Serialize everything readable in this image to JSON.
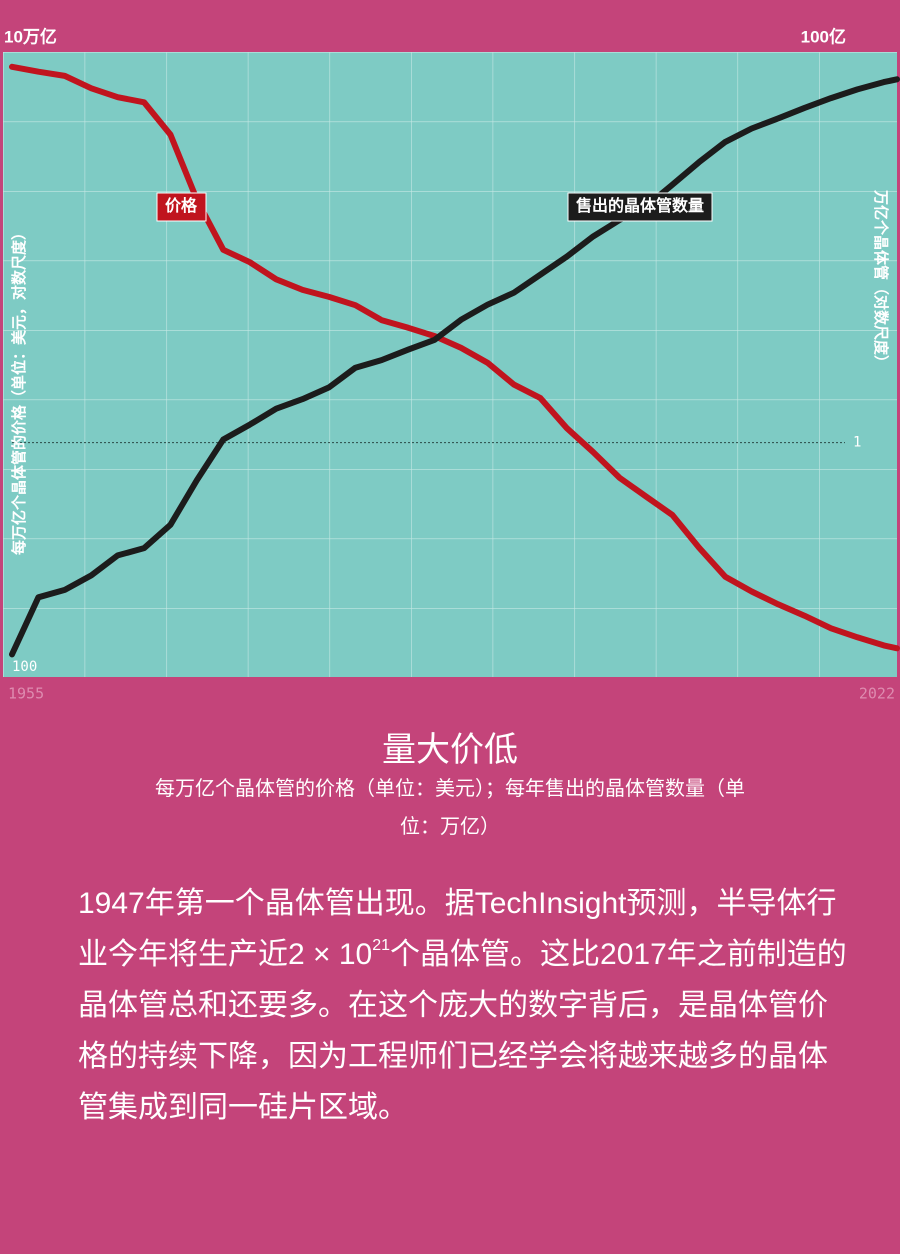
{
  "chart_data": {
    "type": "line",
    "title": "量大价低",
    "subtitle": "每万亿个晶体管的价格（单位：美元）；每年售出的晶体管数量（单位：万亿）",
    "ylabel": "每万亿个晶体管的价格（单位：美元，对数尺度）",
    "y2label": "万亿个晶体管（对数尺度）",
    "log_scale": true,
    "x": [
      1955,
      1957,
      1959,
      1961,
      1963,
      1965,
      1967,
      1969,
      1971,
      1973,
      1975,
      1977,
      1979,
      1981,
      1983,
      1985,
      1987,
      1989,
      1991,
      1993,
      1995,
      1997,
      1999,
      2001,
      2003,
      2005,
      2007,
      2009,
      2011,
      2013,
      2015,
      2017,
      2019,
      2021,
      2022
    ],
    "xlim": [
      1955,
      2022
    ],
    "xticks": [
      1955,
      2022
    ],
    "ylim": [
      100,
      10000000000000
    ],
    "yticks": [
      {
        "value": 10000000000000,
        "label": "10万亿"
      },
      100
    ],
    "y2lim": [
      1e-06,
      10000000000
    ],
    "y2ticks": [
      {
        "value": 10000000000,
        "label": "100亿"
      },
      1
    ],
    "series": [
      {
        "name": "价格",
        "color": "#c0141e",
        "values": [
          5500000000000,
          4500000000000,
          3800000000000,
          2300000000000,
          1600000000000,
          1300000000000,
          350000000000,
          25000000000,
          3300000000,
          2000000000,
          1000000000,
          650000000,
          490000000,
          350000000,
          190000000,
          140000000,
          100000000,
          62000000,
          34000000,
          14000000,
          8100000,
          2400000,
          910000,
          320000,
          150000,
          71000,
          19000,
          5800,
          3200,
          1900,
          1200,
          720,
          500,
          360,
          320
        ]
      },
      {
        "name": "售出的晶体管数量",
        "color": "#1c1c1c",
        "axis": "y2",
        "values": [
          3.8e-06,
          0.00011,
          0.00017,
          0.0004,
          0.0013,
          0.002,
          0.0079,
          0.11,
          1.2,
          2.9,
          7.4,
          13,
          26,
          83,
          130,
          240,
          430,
          1400,
          3400,
          6900,
          20000,
          58000,
          190000,
          500000,
          1100000,
          4000000,
          15000000,
          50000000,
          110000000,
          200000000,
          370000000,
          660000000,
          1100000000,
          1700000000,
          2000000000
        ]
      }
    ]
  },
  "body": {
    "before": "1947年第一个晶体管出现。据TechInsight预测，半导体行业今年将生产近2 × 10",
    "exponent": "21",
    "after": "个晶体管。这比2017年之前制造的晶体管总和还要多。在这个庞大的数字背后，是晶体管价格的持续下降，因为工程师们已经学会将越来越多的晶体管集成到同一硅片区域。"
  }
}
